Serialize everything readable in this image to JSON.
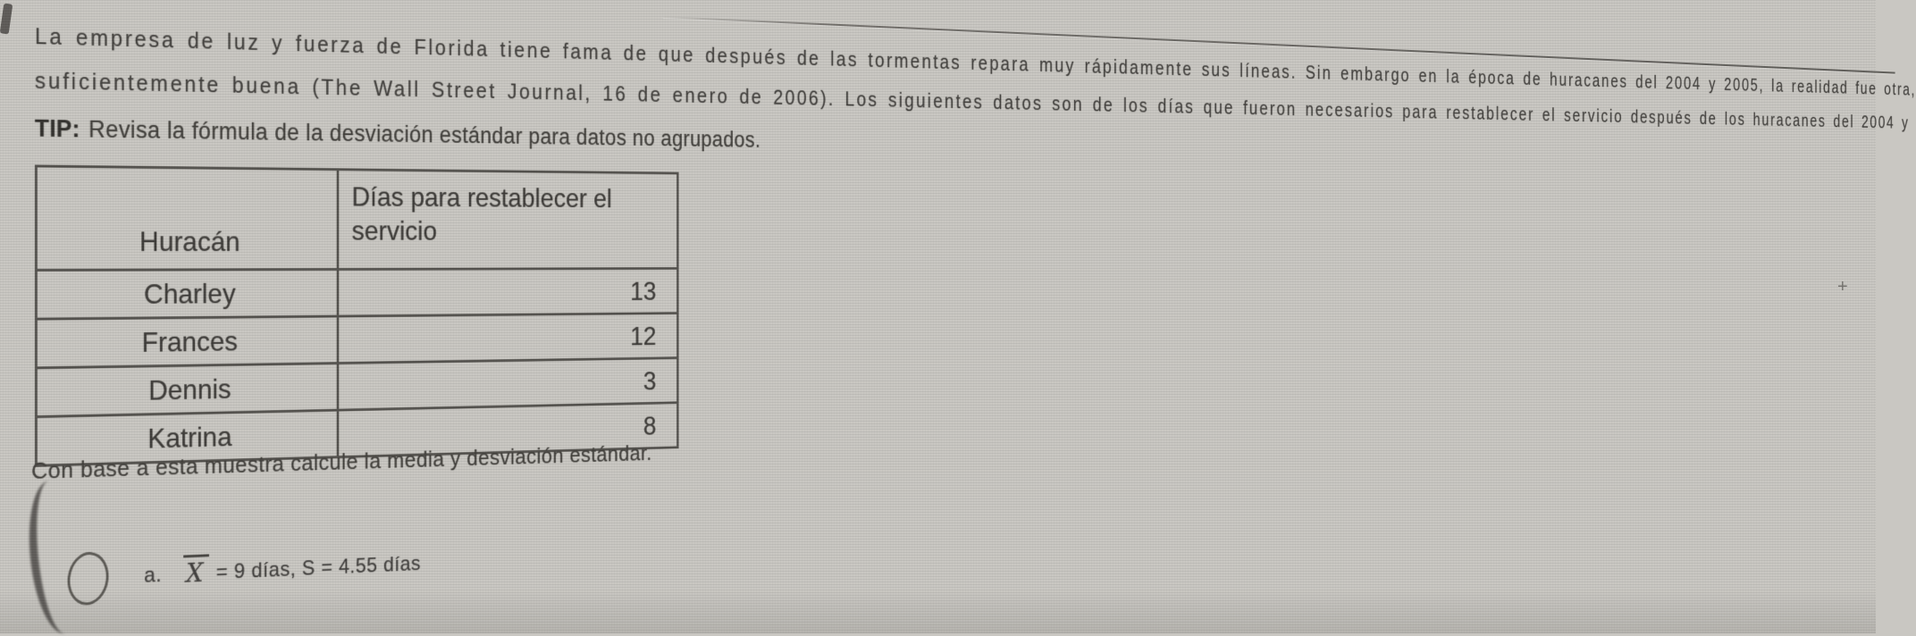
{
  "page": {
    "background_color": "#c9c7c2",
    "text_color": "#46443f",
    "kind": "photographed quiz question"
  },
  "question": {
    "paragraph_lines": [
      "La empresa de luz y fuerza de Florida tiene fama de que después de las tormentas repara muy rápidamente sus líneas. Sin embargo en la época de huracanes del 2004 y 2005, la realidad fue otra,",
      "suficientemente buena (The Wall Street Journal, 16 de enero de 2006). Los siguientes datos son de los días que fueron necesarios para restablecer el servicio después de los huracanes del 2004 y"
    ],
    "tip_label": "TIP:",
    "tip_text": "Revisa la fórmula de la desviación estándar para datos no agrupados.",
    "table": {
      "headers": [
        "Huracán",
        "Días para restablecer el servicio"
      ],
      "rows": [
        {
          "name": "Charley",
          "days": "13"
        },
        {
          "name": "Frances",
          "days": "12"
        },
        {
          "name": "Dennis",
          "days": "3"
        },
        {
          "name": "Katrina",
          "days": "8"
        }
      ]
    },
    "instruction": "Con base a esta muestra calcule la media y desviación estándar.",
    "options": [
      {
        "label": "a.",
        "mean_symbol": "X",
        "text": "= 9 días, S = 4.55 días",
        "selected": false
      }
    ]
  },
  "artifacts": {
    "plus_glyph": "+"
  }
}
